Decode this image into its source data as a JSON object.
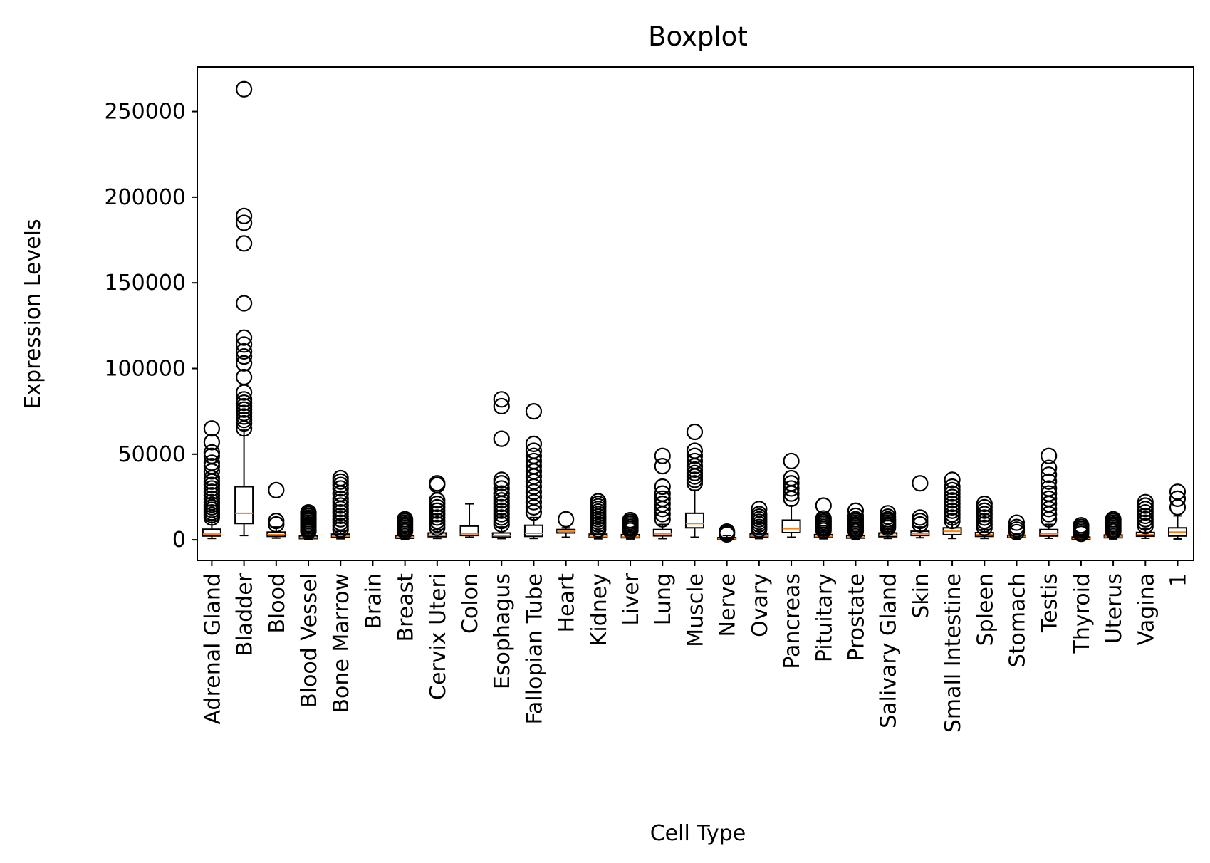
{
  "chart_data": {
    "type": "boxplot",
    "title": "Boxplot",
    "xlabel": "Cell Type",
    "ylabel": "Expression Levels",
    "ylim": [
      -12000,
      276000
    ],
    "yticks": [
      0,
      50000,
      100000,
      150000,
      200000,
      250000
    ],
    "ytick_labels": [
      "0",
      "50000",
      "100000",
      "150000",
      "200000",
      "250000"
    ],
    "grid": false,
    "colors": {
      "box": "#000000",
      "median": "#ff7f0e",
      "flier": "#000000"
    },
    "categories": [
      "Adrenal Gland",
      "Bladder",
      "Blood",
      "Blood Vessel",
      "Bone Marrow",
      "Brain",
      "Breast",
      "Cervix Uteri",
      "Colon",
      "Esophagus",
      "Fallopian Tube",
      "Heart",
      "Kidney",
      "Liver",
      "Lung",
      "Muscle",
      "Nerve",
      "Ovary",
      "Pancreas",
      "Pituitary",
      "Prostate",
      "Salivary Gland",
      "Skin",
      "Small Intestine",
      "Spleen",
      "Stomach",
      "Testis",
      "Thyroid",
      "Uterus",
      "Vagina",
      "1"
    ],
    "boxes": [
      {
        "whislo": 800,
        "q1": 2200,
        "med": 3300,
        "q3": 6200,
        "whishi": 11500,
        "fliers": [
          13000,
          14500,
          16000,
          17500,
          19000,
          20500,
          22000,
          24000,
          26000,
          28000,
          30000,
          32000,
          34000,
          36000,
          40000,
          43000,
          45000,
          49000,
          51000,
          57000,
          65000
        ]
      },
      {
        "whislo": 2500,
        "q1": 9500,
        "med": 15500,
        "q3": 31000,
        "whishi": 64000,
        "fliers": [
          65000,
          68000,
          70000,
          72000,
          74000,
          76000,
          78000,
          80000,
          82000,
          86000,
          95000,
          103000,
          107000,
          110000,
          114000,
          118000,
          138000,
          173000,
          185000,
          189000,
          263000
        ]
      },
      {
        "whislo": 1000,
        "q1": 2000,
        "med": 3000,
        "q3": 4500,
        "whishi": 7500,
        "fliers": [
          9000,
          11000,
          29000
        ]
      },
      {
        "whislo": 300,
        "q1": 700,
        "med": 1200,
        "q3": 2300,
        "whishi": 4000,
        "fliers": [
          5000,
          6000,
          7000,
          8000,
          9000,
          10000,
          11000,
          12000,
          13000,
          14000,
          15000,
          16000
        ]
      },
      {
        "whislo": 600,
        "q1": 1500,
        "med": 2200,
        "q3": 3300,
        "whishi": 5000,
        "fliers": [
          6000,
          8000,
          10000,
          12000,
          14000,
          16000,
          18000,
          20000,
          22000,
          24000,
          27000,
          30000,
          32000,
          34000,
          36000
        ]
      },
      null,
      {
        "whislo": 400,
        "q1": 900,
        "med": 1500,
        "q3": 2500,
        "whishi": 4000,
        "fliers": [
          5000,
          6000,
          7000,
          8000,
          9000,
          10000,
          11000,
          12000
        ]
      },
      {
        "whislo": 800,
        "q1": 1800,
        "med": 2700,
        "q3": 4000,
        "whishi": 6000,
        "fliers": [
          7000,
          9000,
          11000,
          13000,
          15000,
          17000,
          19000,
          21000,
          23000,
          32000,
          33000
        ]
      },
      {
        "whislo": 1500,
        "q1": 2500,
        "med": 3500,
        "q3": 8000,
        "whishi": 21000,
        "fliers": []
      },
      {
        "whislo": 700,
        "q1": 1600,
        "med": 2500,
        "q3": 4000,
        "whishi": 7500,
        "fliers": [
          9000,
          11000,
          13000,
          15000,
          17000,
          19000,
          21000,
          23000,
          25000,
          27000,
          30000,
          33000,
          35000,
          59000,
          78000,
          82000
        ]
      },
      {
        "whislo": 800,
        "q1": 2000,
        "med": 3800,
        "q3": 8500,
        "whishi": 13000,
        "fliers": [
          16000,
          19000,
          22000,
          25000,
          28000,
          31000,
          34000,
          37000,
          40000,
          43000,
          46000,
          49000,
          52000,
          56000,
          75000
        ]
      },
      {
        "whislo": 1500,
        "q1": 4000,
        "med": 5000,
        "q3": 6000,
        "whishi": 7000,
        "fliers": [
          12000
        ]
      },
      {
        "whislo": 600,
        "q1": 1300,
        "med": 2000,
        "q3": 3300,
        "whishi": 5000,
        "fliers": [
          6000,
          7500,
          9000,
          10500,
          12000,
          13500,
          15000,
          16500,
          18000,
          19500,
          21000,
          22500
        ]
      },
      {
        "whislo": 500,
        "q1": 1200,
        "med": 1800,
        "q3": 3000,
        "whishi": 4500,
        "fliers": [
          5500,
          6500,
          7500,
          8500,
          9500,
          10500,
          11500
        ]
      },
      {
        "whislo": 700,
        "q1": 2300,
        "med": 3500,
        "q3": 6000,
        "whishi": 9000,
        "fliers": [
          12000,
          15000,
          18000,
          21000,
          24000,
          27000,
          31000,
          43000,
          49000
        ]
      },
      {
        "whislo": 1500,
        "q1": 7000,
        "med": 9500,
        "q3": 15500,
        "whishi": 29000,
        "fliers": [
          33000,
          35000,
          37000,
          39000,
          41000,
          43000,
          46000,
          49000,
          52000,
          63000
        ]
      },
      {
        "whislo": 100,
        "q1": 400,
        "med": 700,
        "q3": 1300,
        "whishi": 2500,
        "fliers": [
          3200,
          4000,
          4800
        ]
      },
      {
        "whislo": 700,
        "q1": 1500,
        "med": 2300,
        "q3": 3500,
        "whishi": 5000,
        "fliers": [
          6000,
          7500,
          9000,
          10500,
          12000,
          13500,
          15000,
          18000
        ]
      },
      {
        "whislo": 1500,
        "q1": 4200,
        "med": 6500,
        "q3": 11500,
        "whishi": 20000,
        "fliers": [
          24000,
          27000,
          30000,
          33000,
          36000,
          46000
        ]
      },
      {
        "whislo": 600,
        "q1": 1300,
        "med": 2000,
        "q3": 3000,
        "whishi": 4500,
        "fliers": [
          5500,
          6500,
          7500,
          8500,
          9500,
          10500,
          11500,
          12500,
          20000
        ]
      },
      {
        "whislo": 400,
        "q1": 1000,
        "med": 1500,
        "q3": 2500,
        "whishi": 4000,
        "fliers": [
          5000,
          6000,
          7000,
          8000,
          9000,
          10000,
          11000,
          12000,
          14000,
          17000
        ]
      },
      {
        "whislo": 800,
        "q1": 1800,
        "med": 2700,
        "q3": 4000,
        "whishi": 6000,
        "fliers": [
          7000,
          8000,
          9000,
          10000,
          11000,
          12000,
          13500,
          15500
        ]
      },
      {
        "whislo": 1200,
        "q1": 2500,
        "med": 3500,
        "q3": 5000,
        "whishi": 7500,
        "fliers": [
          9000,
          11000,
          13000,
          33000
        ]
      },
      {
        "whislo": 800,
        "q1": 3000,
        "med": 5000,
        "q3": 7000,
        "whishi": 10000,
        "fliers": [
          11000,
          13000,
          15000,
          17000,
          19000,
          21000,
          23000,
          25000,
          27000,
          29000,
          31000,
          35000
        ]
      },
      {
        "whislo": 800,
        "q1": 2000,
        "med": 3000,
        "q3": 4200,
        "whishi": 6000,
        "fliers": [
          7000,
          9000,
          11000,
          13000,
          15000,
          17000,
          19000,
          21000
        ]
      },
      {
        "whislo": 600,
        "q1": 1300,
        "med": 1900,
        "q3": 2600,
        "whishi": 3500,
        "fliers": [
          4500,
          6000,
          7500,
          10000
        ]
      },
      {
        "whislo": 900,
        "q1": 2200,
        "med": 3500,
        "q3": 6000,
        "whishi": 9000,
        "fliers": [
          12000,
          15000,
          18000,
          21000,
          24000,
          27000,
          30000,
          34000,
          38000,
          42000,
          49000
        ]
      },
      {
        "whislo": 200,
        "q1": 500,
        "med": 900,
        "q3": 1600,
        "whishi": 2500,
        "fliers": [
          3500,
          4500,
          5500,
          6500,
          7500,
          8500
        ]
      },
      {
        "whislo": 500,
        "q1": 1200,
        "med": 1800,
        "q3": 2800,
        "whishi": 4000,
        "fliers": [
          5000,
          6000,
          7000,
          8000,
          9000,
          10000,
          11000,
          12000
        ]
      },
      {
        "whislo": 900,
        "q1": 2100,
        "med": 3000,
        "q3": 4300,
        "whishi": 6500,
        "fliers": [
          8000,
          10000,
          12000,
          14000,
          16000,
          18000,
          20000,
          22000
        ]
      },
      {
        "whislo": 500,
        "q1": 2200,
        "med": 4500,
        "q3": 7000,
        "whishi": 14000,
        "fliers": [
          19000,
          24000,
          28000
        ]
      }
    ]
  }
}
